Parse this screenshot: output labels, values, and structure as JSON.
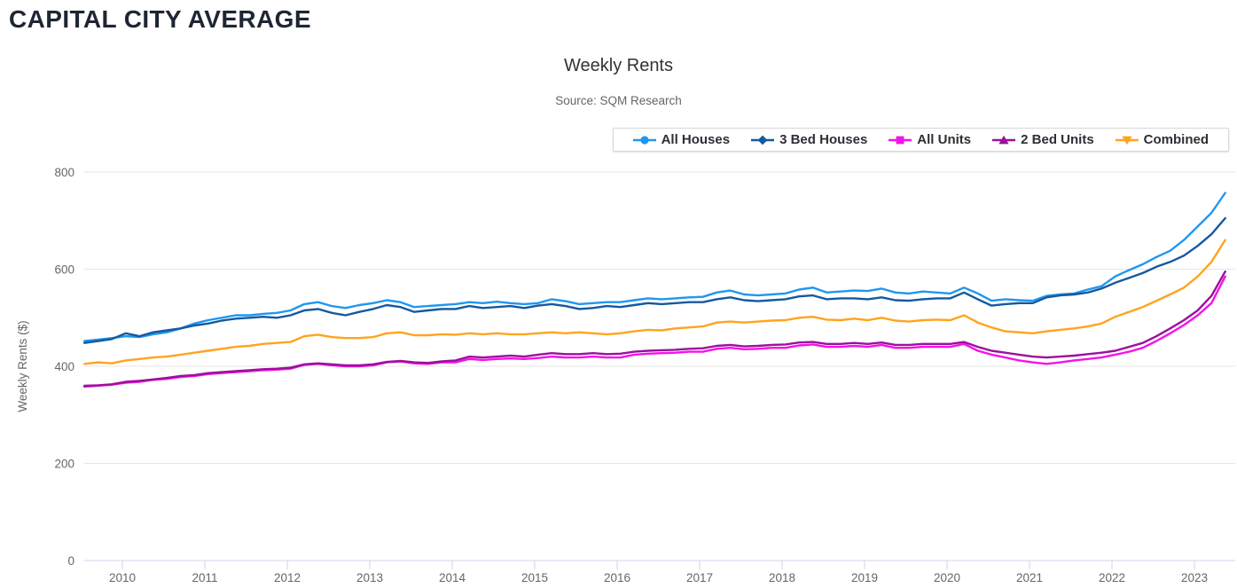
{
  "page": {
    "header": "CAPITAL CITY AVERAGE"
  },
  "chart_data": {
    "type": "line",
    "title": "Weekly Rents",
    "subtitle": "Source: SQM Research",
    "xlabel": "",
    "ylabel": "Weekly Rents ($)",
    "ylim": [
      0,
      800
    ],
    "yticks": [
      0,
      200,
      400,
      600,
      800
    ],
    "xticks": [
      2010,
      2011,
      2012,
      2013,
      2014,
      2015,
      2016,
      2017,
      2018,
      2019,
      2020,
      2021,
      2022,
      2023
    ],
    "xlim": [
      2009.54,
      2023.45
    ],
    "grid": "horizontal",
    "legend_position": "top-right",
    "x_start": 2009.54,
    "x_step": 0.16667,
    "axis_color": "#ccd6eb",
    "grid_color": "#e6e6e6",
    "label_color": "#666666",
    "series": [
      {
        "name": "All Houses",
        "color": "#1f97f0",
        "marker": "circle",
        "values": [
          452,
          455,
          458,
          462,
          460,
          466,
          470,
          478,
          488,
          495,
          500,
          505,
          505,
          508,
          510,
          515,
          528,
          532,
          524,
          520,
          526,
          530,
          536,
          532,
          522,
          524,
          526,
          528,
          532,
          530,
          533,
          530,
          528,
          530,
          538,
          534,
          528,
          530,
          532,
          532,
          536,
          540,
          538,
          540,
          542,
          543,
          552,
          556,
          548,
          546,
          548,
          550,
          558,
          562,
          552,
          554,
          556,
          555,
          560,
          552,
          550,
          554,
          552,
          550,
          562,
          550,
          535,
          538,
          536,
          535,
          545,
          548,
          550,
          558,
          565,
          585,
          598,
          610,
          625,
          638,
          660,
          688,
          716,
          757
        ]
      },
      {
        "name": "3 Bed Houses",
        "color": "#15599e",
        "marker": "diamond",
        "values": [
          448,
          452,
          456,
          468,
          462,
          470,
          474,
          478,
          484,
          488,
          494,
          498,
          500,
          502,
          500,
          505,
          515,
          518,
          510,
          505,
          512,
          518,
          526,
          522,
          512,
          515,
          518,
          518,
          524,
          520,
          522,
          524,
          520,
          525,
          528,
          524,
          518,
          520,
          524,
          522,
          526,
          530,
          528,
          530,
          532,
          532,
          538,
          542,
          536,
          534,
          536,
          538,
          544,
          546,
          538,
          540,
          540,
          538,
          542,
          536,
          535,
          538,
          540,
          540,
          552,
          538,
          525,
          528,
          530,
          530,
          542,
          546,
          548,
          552,
          560,
          572,
          582,
          592,
          605,
          615,
          628,
          648,
          672,
          705
        ]
      },
      {
        "name": "All Units",
        "color": "#f313e8",
        "marker": "square",
        "values": [
          358,
          360,
          362,
          366,
          368,
          372,
          374,
          378,
          380,
          384,
          386,
          388,
          390,
          392,
          393,
          395,
          403,
          405,
          402,
          400,
          400,
          402,
          408,
          410,
          406,
          405,
          408,
          408,
          415,
          413,
          415,
          416,
          415,
          417,
          420,
          418,
          418,
          420,
          418,
          418,
          424,
          426,
          427,
          428,
          430,
          430,
          436,
          438,
          435,
          436,
          438,
          438,
          443,
          445,
          440,
          440,
          442,
          440,
          444,
          438,
          438,
          440,
          440,
          440,
          446,
          432,
          424,
          418,
          412,
          408,
          405,
          408,
          412,
          415,
          418,
          424,
          430,
          438,
          452,
          468,
          485,
          505,
          530,
          585
        ]
      },
      {
        "name": "2 Bed Units",
        "color": "#9c109c",
        "marker": "triangle-up",
        "values": [
          360,
          361,
          363,
          368,
          370,
          373,
          376,
          380,
          382,
          386,
          388,
          390,
          392,
          394,
          395,
          397,
          404,
          406,
          404,
          402,
          402,
          404,
          409,
          411,
          408,
          407,
          410,
          412,
          420,
          418,
          420,
          422,
          420,
          424,
          427,
          425,
          425,
          427,
          425,
          426,
          430,
          432,
          433,
          434,
          436,
          437,
          442,
          444,
          441,
          442,
          444,
          445,
          449,
          450,
          446,
          446,
          448,
          446,
          449,
          444,
          444,
          446,
          446,
          446,
          450,
          440,
          432,
          428,
          424,
          420,
          418,
          420,
          422,
          425,
          428,
          432,
          440,
          448,
          462,
          478,
          495,
          515,
          545,
          595
        ]
      },
      {
        "name": "Combined",
        "color": "#ffa41d",
        "marker": "triangle-down",
        "values": [
          405,
          408,
          406,
          412,
          415,
          418,
          420,
          424,
          428,
          432,
          436,
          440,
          442,
          446,
          448,
          450,
          462,
          465,
          460,
          458,
          458,
          460,
          468,
          470,
          464,
          464,
          466,
          465,
          468,
          466,
          468,
          466,
          466,
          468,
          470,
          468,
          470,
          468,
          466,
          468,
          472,
          475,
          474,
          478,
          480,
          482,
          490,
          492,
          490,
          492,
          494,
          495,
          500,
          502,
          496,
          495,
          498,
          495,
          500,
          494,
          492,
          495,
          496,
          495,
          505,
          490,
          480,
          472,
          470,
          468,
          472,
          475,
          478,
          482,
          488,
          502,
          512,
          522,
          535,
          548,
          562,
          585,
          615,
          660
        ]
      }
    ]
  }
}
